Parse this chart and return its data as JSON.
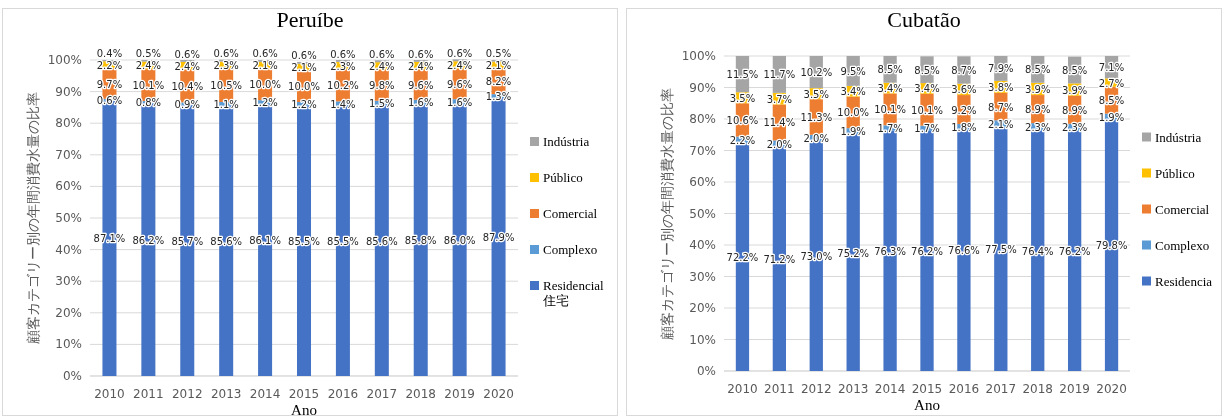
{
  "chart_data": [
    {
      "type": "bar",
      "stacked": true,
      "title": "Peruíbe",
      "xlabel": "Ano",
      "ylabel": "顧客カテゴリー別の年間消費水量の比率",
      "categories": [
        "2010",
        "2011",
        "2012",
        "2013",
        "2014",
        "2015",
        "2016",
        "2017",
        "2018",
        "2019",
        "2020"
      ],
      "ylim": [
        0,
        100
      ],
      "yticks": [
        {
          "value": 0,
          "label": "0%"
        },
        {
          "value": 10,
          "label": "10%"
        },
        {
          "value": 20,
          "label": "20%"
        },
        {
          "value": 30,
          "label": "30%"
        },
        {
          "value": 40,
          "label": "40%"
        },
        {
          "value": 50,
          "label": "50%"
        },
        {
          "value": 60,
          "label": "60%"
        },
        {
          "value": 70,
          "label": "70%"
        },
        {
          "value": 80,
          "label": "80%"
        },
        {
          "value": 90,
          "label": "90%"
        },
        {
          "value": 100,
          "label": "100%"
        }
      ],
      "grid": "y",
      "legend": "right",
      "series": [
        {
          "name": "Residencial 住宅",
          "color": "#4472c4",
          "values": [
            87.1,
            86.2,
            85.7,
            85.6,
            86.1,
            85.5,
            85.5,
            85.6,
            85.8,
            86.0,
            87.9
          ],
          "value_labels": [
            "87.1%",
            "86.2%",
            "85.7%",
            "85.6%",
            "86.1%",
            "85.5%",
            "85.5%",
            "85.6%",
            "85.8%",
            "86.0%",
            "87.9%"
          ]
        },
        {
          "name": "Complexo",
          "color": "#5b9bd5",
          "values": [
            0.6,
            0.8,
            0.9,
            1.1,
            1.2,
            1.2,
            1.4,
            1.5,
            1.6,
            1.6,
            1.3
          ],
          "value_labels": [
            "0.6%",
            "0.8%",
            "0.9%",
            "1.1%",
            "1.2%",
            "1.2%",
            "1.4%",
            "1.5%",
            "1.6%",
            "1.6%",
            "1.3%"
          ]
        },
        {
          "name": "Comercial",
          "color": "#ed7d31",
          "values": [
            9.7,
            10.1,
            10.4,
            10.5,
            10.0,
            10.0,
            10.2,
            9.8,
            9.6,
            9.6,
            8.2
          ],
          "value_labels": [
            "9.7%",
            "10.1%",
            "10.4%",
            "10.5%",
            "10.0%",
            "10.0%",
            "10.2%",
            "9.8%",
            "9.6%",
            "9.6%",
            "8.2%"
          ]
        },
        {
          "name": "Público",
          "color": "#ffc000",
          "values": [
            2.2,
            2.4,
            2.4,
            2.3,
            2.1,
            2.1,
            2.3,
            2.4,
            2.4,
            2.4,
            2.1
          ],
          "value_labels": [
            "2.2%",
            "2.4%",
            "2.4%",
            "2.3%",
            "2.1%",
            "2.1%",
            "2.3%",
            "2.4%",
            "2.4%",
            "2.4%",
            "2.1%"
          ]
        },
        {
          "name": "Indústria",
          "color": "#a5a5a5",
          "values": [
            0.4,
            0.5,
            0.6,
            0.6,
            0.6,
            0.6,
            0.6,
            0.6,
            0.6,
            0.6,
            0.5
          ],
          "value_labels": [
            "0.4%",
            "0.5%",
            "0.6%",
            "0.6%",
            "0.6%",
            "0.6%",
            "0.6%",
            "0.6%",
            "0.6%",
            "0.6%",
            "0.5%"
          ]
        }
      ]
    },
    {
      "type": "bar",
      "stacked": true,
      "title": "Cubatão",
      "xlabel": "Ano",
      "ylabel": "顧客カテゴリー別の年間消費水量の比率",
      "categories": [
        "2010",
        "2011",
        "2012",
        "2013",
        "2014",
        "2015",
        "2016",
        "2017",
        "2018",
        "2019",
        "2020"
      ],
      "ylim": [
        0,
        100
      ],
      "yticks": [
        {
          "value": 0,
          "label": "0%"
        },
        {
          "value": 10,
          "label": "10%"
        },
        {
          "value": 20,
          "label": "20%"
        },
        {
          "value": 30,
          "label": "30%"
        },
        {
          "value": 40,
          "label": "40%"
        },
        {
          "value": 50,
          "label": "50%"
        },
        {
          "value": 60,
          "label": "60%"
        },
        {
          "value": 70,
          "label": "70%"
        },
        {
          "value": 80,
          "label": "80%"
        },
        {
          "value": 90,
          "label": "90%"
        },
        {
          "value": 100,
          "label": "100%"
        }
      ],
      "grid": "y",
      "legend": "right",
      "series": [
        {
          "name": "Residencia",
          "color": "#4472c4",
          "values": [
            72.2,
            71.2,
            73.0,
            75.2,
            76.3,
            76.2,
            76.6,
            77.5,
            76.4,
            76.2,
            79.8
          ],
          "value_labels": [
            "72.2%",
            "71.2%",
            "73.0%",
            "75.2%",
            "76.3%",
            "76.2%",
            "76.6%",
            "77.5%",
            "76.4%",
            "76.2%",
            "79.8%"
          ]
        },
        {
          "name": "Complexo",
          "color": "#5b9bd5",
          "values": [
            2.2,
            2.0,
            2.0,
            1.9,
            1.7,
            1.7,
            1.8,
            2.1,
            2.3,
            2.3,
            1.9
          ],
          "value_labels": [
            "2.2%",
            "2.0%",
            "2.0%",
            "1.9%",
            "1.7%",
            "1.7%",
            "1.8%",
            "2.1%",
            "2.3%",
            "2.3%",
            "1.9%"
          ]
        },
        {
          "name": "Comercial",
          "color": "#ed7d31",
          "values": [
            10.6,
            11.4,
            11.3,
            10.0,
            10.1,
            10.1,
            9.2,
            8.7,
            8.9,
            8.9,
            8.5
          ],
          "value_labels": [
            "10.6%",
            "11.4%",
            "11.3%",
            "10.0%",
            "10.1%",
            "10.1%",
            "9.2%",
            "8.7%",
            "8.9%",
            "8.9%",
            "8.5%"
          ]
        },
        {
          "name": "Público",
          "color": "#ffc000",
          "values": [
            3.5,
            3.7,
            3.5,
            3.4,
            3.4,
            3.4,
            3.6,
            3.8,
            3.9,
            3.9,
            2.7
          ],
          "value_labels": [
            "3.5%",
            "3.7%",
            "3.5%",
            "3.4%",
            "3.4%",
            "3.4%",
            "3.6%",
            "3.8%",
            "3.9%",
            "3.9%",
            "2.7%"
          ]
        },
        {
          "name": "Indústria",
          "color": "#a5a5a5",
          "values": [
            11.5,
            11.7,
            10.2,
            9.5,
            8.5,
            8.5,
            8.7,
            7.9,
            8.5,
            8.5,
            7.1
          ],
          "value_labels": [
            "11.5%",
            "11.7%",
            "10.2%",
            "9.5%",
            "8.5%",
            "8.5%",
            "8.7%",
            "7.9%",
            "8.5%",
            "8.5%",
            "7.1%"
          ]
        }
      ]
    }
  ]
}
